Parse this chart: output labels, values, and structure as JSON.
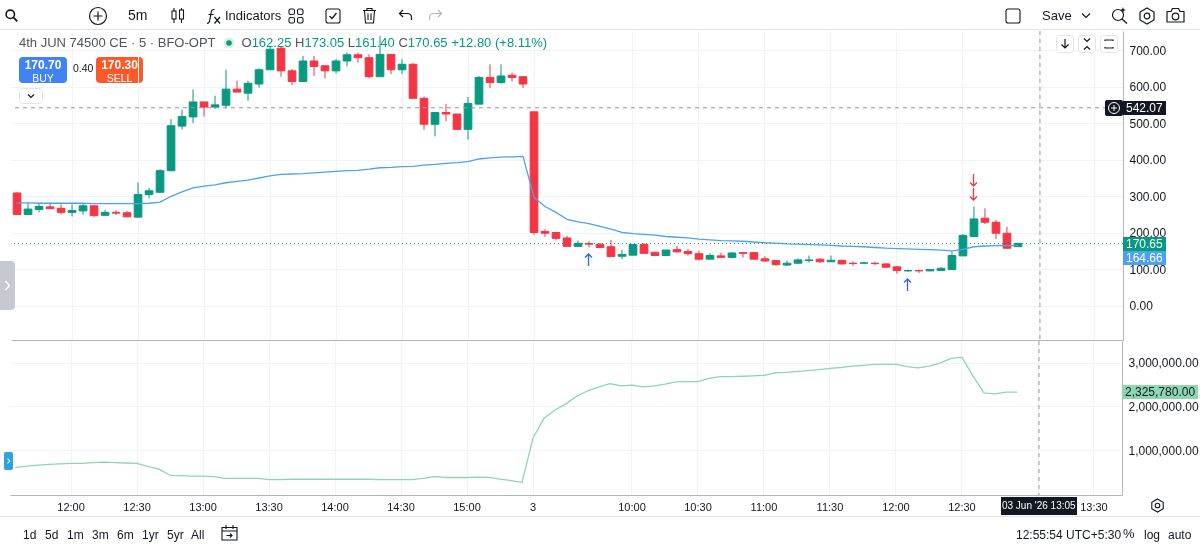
{
  "chart_data": [
    {
      "type": "candlestick",
      "title": "4th JUN 74500 CE · 5 · BFO-OPT",
      "subtitle": "O162.25 H173.05 L161.40 C170.65 +12.80 (+8.11%)",
      "categories": [
        null,
        null,
        null,
        null,
        null,
        "12:00",
        null,
        null,
        null,
        null,
        null,
        "12:30",
        null,
        null,
        null,
        null,
        null,
        "13:00",
        null,
        null,
        null,
        null,
        null,
        "13:30",
        null,
        null,
        null,
        null,
        null,
        "14:00",
        null,
        null,
        null,
        null,
        null,
        "14:30",
        null,
        null,
        null,
        null,
        null,
        "15:00",
        null,
        null,
        null,
        null,
        null,
        "3",
        null,
        null,
        null,
        null,
        null,
        null,
        null,
        null,
        "10:00",
        null,
        null,
        null,
        null,
        null,
        "10:30",
        null,
        null,
        null,
        null,
        null,
        "11:00",
        null,
        null,
        null,
        null,
        null,
        "11:30",
        null,
        null,
        null,
        null,
        null,
        "12:00",
        null,
        null,
        null,
        null,
        null,
        "12:30",
        null,
        null,
        null,
        null,
        null,
        null,
        "03 Jun '26 13:05",
        null,
        null,
        null,
        null,
        "13:30",
        null,
        null
      ],
      "ohlc": [
        [
          309,
          312,
          250,
          250
        ],
        [
          250,
          282,
          250,
          265
        ],
        [
          264,
          280,
          256,
          272
        ],
        [
          271,
          280,
          266,
          266
        ],
        [
          267,
          278,
          250,
          256
        ],
        [
          256,
          278,
          245,
          261
        ],
        [
          260,
          280,
          250,
          274
        ],
        [
          274,
          274,
          243,
          247
        ],
        [
          248,
          263,
          246,
          256
        ],
        [
          256,
          262,
          249,
          254
        ],
        [
          255,
          260,
          242,
          244
        ],
        [
          243,
          338,
          241,
          305
        ],
        [
          305,
          323,
          294,
          315
        ],
        [
          311,
          374,
          309,
          370
        ],
        [
          370,
          511,
          368,
          493
        ],
        [
          492,
          537,
          483,
          518
        ],
        [
          517,
          592,
          500,
          558
        ],
        [
          558,
          558,
          518,
          544
        ],
        [
          544,
          575,
          539,
          550
        ],
        [
          549,
          646,
          540,
          593
        ],
        [
          593,
          616,
          585,
          585
        ],
        [
          582,
          616,
          561,
          609
        ],
        [
          607,
          650,
          597,
          646
        ],
        [
          646,
          709,
          646,
          702
        ],
        [
          705,
          709,
          627,
          643
        ],
        [
          643,
          648,
          604,
          614
        ],
        [
          614,
          684,
          614,
          670
        ],
        [
          670,
          684,
          629,
          655
        ],
        [
          657,
          657,
          622,
          643
        ],
        [
          643,
          675,
          636,
          670
        ],
        [
          670,
          693,
          655,
          687
        ],
        [
          687,
          693,
          666,
          679
        ],
        [
          679,
          688,
          622,
          627
        ],
        [
          627,
          739,
          627,
          688
        ],
        [
          688,
          688,
          634,
          646
        ],
        [
          646,
          675,
          634,
          661
        ],
        [
          661,
          664,
          568,
          568
        ],
        [
          568,
          573,
          482,
          497
        ],
        [
          497,
          529,
          464,
          529
        ],
        [
          529,
          552,
          505,
          525
        ],
        [
          525,
          525,
          483,
          483
        ],
        [
          483,
          572,
          455,
          554
        ],
        [
          552,
          629,
          552,
          625
        ],
        [
          625,
          661,
          596,
          611
        ],
        [
          611,
          661,
          608,
          629
        ],
        [
          631,
          638,
          614,
          625
        ],
        [
          627,
          629,
          596,
          607
        ],
        [
          531,
          531,
          195,
          201
        ],
        [
          204,
          210,
          189,
          199
        ],
        [
          201,
          201,
          179,
          185
        ],
        [
          186,
          192,
          162,
          163
        ],
        [
          163,
          179,
          163,
          171
        ],
        [
          171,
          177,
          160,
          169
        ],
        [
          169,
          172,
          158,
          160
        ],
        [
          162,
          181,
          135,
          135
        ],
        [
          136,
          154,
          128,
          141
        ],
        [
          139,
          169,
          139,
          168
        ],
        [
          168,
          172,
          144,
          144
        ],
        [
          147,
          147,
          136,
          138
        ],
        [
          138,
          153,
          136,
          153
        ],
        [
          154,
          165,
          146,
          148
        ],
        [
          149,
          156,
          138,
          143
        ],
        [
          143,
          151,
          124,
          128
        ],
        [
          128,
          144,
          128,
          138
        ],
        [
          137,
          146,
          133,
          133
        ],
        [
          133,
          147,
          130,
          145
        ],
        [
          146,
          146,
          133,
          144
        ],
        [
          146,
          146,
          128,
          128
        ],
        [
          129,
          136,
          121,
          123
        ],
        [
          124,
          126,
          110,
          113
        ],
        [
          112,
          124,
          110,
          117
        ],
        [
          117,
          130,
          115,
          126
        ],
        [
          124,
          138,
          119,
          126
        ],
        [
          128,
          130,
          118,
          121
        ],
        [
          121,
          138,
          121,
          125
        ],
        [
          125,
          125,
          113,
          115
        ],
        [
          117,
          122,
          110,
          116
        ],
        [
          117,
          121,
          115,
          118
        ],
        [
          117,
          121,
          112,
          116
        ],
        [
          115,
          117,
          105,
          106
        ],
        [
          107,
          109,
          88,
          97
        ],
        [
          96,
          99,
          93,
          97
        ],
        [
          97,
          99,
          90,
          96
        ],
        [
          96,
          100,
          95,
          100
        ],
        [
          97,
          106,
          97,
          103
        ],
        [
          100,
          149,
          100,
          138
        ],
        [
          137,
          197,
          137,
          193
        ],
        [
          190,
          272,
          188,
          238
        ],
        [
          240,
          267,
          224,
          229
        ],
        [
          229,
          236,
          183,
          199
        ],
        [
          199,
          217,
          157.85,
          157.85
        ],
        [
          162.25,
          173.05,
          161.4,
          170.65
        ],
        null,
        null,
        null,
        null,
        null,
        null,
        null,
        null,
        null
      ],
      "colors": [
        "#f23645",
        "#089981",
        "#089981",
        "#f23645",
        "#f23645",
        "#089981",
        "#089981",
        "#f23645",
        "#089981",
        "#f23645",
        "#f23645",
        "#089981",
        "#089981",
        "#089981",
        "#089981",
        "#089981",
        "#089981",
        "#f23645",
        "#089981",
        "#089981",
        "#f23645",
        "#089981",
        "#089981",
        "#089981",
        "#f23645",
        "#f23645",
        "#089981",
        "#f23645",
        "#f23645",
        "#089981",
        "#089981",
        "#f23645",
        "#f23645",
        "#089981",
        "#f23645",
        "#089981",
        "#f23645",
        "#f23645",
        "#089981",
        "#f23645",
        "#f23645",
        "#089981",
        "#089981",
        "#f23645",
        "#089981",
        "#f23645",
        "#f23645",
        "#f23645",
        "#f23645",
        "#f23645",
        "#f23645",
        "#089981",
        "#f23645",
        "#f23645",
        "#f23645",
        "#089981",
        "#089981",
        "#f23645",
        "#f23645",
        "#089981",
        "#f23645",
        "#f23645",
        "#f23645",
        "#089981",
        "#f23645",
        "#089981",
        "#f23645",
        "#f23645",
        "#f23645",
        "#f23645",
        "#089981",
        "#089981",
        "#089981",
        "#f23645",
        "#089981",
        "#f23645",
        "#f23645",
        "#089981",
        "#f23645",
        "#f23645",
        "#f23645",
        "#089981",
        "#f23645",
        "#089981",
        "#089981",
        "#089981",
        "#089981",
        "#089981",
        "#f23645",
        "#f23645",
        "#f23645",
        "#089981",
        null,
        null,
        null,
        null,
        null,
        null,
        null,
        null,
        null
      ],
      "series": [
        {
          "type": "line",
          "color": "#4ba3ef",
          "values": [
            282,
            282,
            281,
            281,
            281,
            281,
            281,
            280,
            280,
            280,
            280,
            280,
            281,
            284,
            300,
            312,
            323,
            328,
            331,
            337,
            341,
            344,
            350,
            356,
            360,
            361,
            362,
            364,
            366,
            368,
            370,
            371,
            374,
            378,
            379,
            381,
            382,
            385,
            387,
            390,
            392,
            395,
            402,
            405,
            407,
            408,
            409,
            297,
            272,
            256,
            237,
            230,
            225,
            218,
            210,
            201,
            198,
            196,
            194,
            190,
            188,
            186,
            183,
            181,
            179,
            178,
            177,
            175,
            173,
            172,
            170,
            169,
            168,
            167,
            166,
            164,
            163,
            162,
            160,
            158,
            157,
            156,
            155,
            154,
            153,
            151,
            155,
            162,
            164,
            165,
            165,
            165,
            null,
            null,
            null,
            null,
            null,
            null,
            null,
            null,
            null
          ]
        }
      ],
      "ylim": [
        -93,
        752
      ],
      "yticks": [
        {
          "value": 0,
          "label": "0.00"
        },
        {
          "value": 100,
          "label": "100.00"
        },
        {
          "value": 200,
          "label": "200.00"
        },
        {
          "value": 300,
          "label": "300.00"
        },
        {
          "value": 400,
          "label": "400.00"
        },
        {
          "value": 500,
          "label": "500.00"
        },
        {
          "value": 600,
          "label": "600.00"
        },
        {
          "value": 700,
          "label": "700.00"
        }
      ],
      "grid": true,
      "tick_labels": "y",
      "ref_lines": [
        {
          "axis": "x",
          "value": "03 Jun '26 13:05",
          "line_style": "dashed"
        },
        {
          "axis": "y",
          "value": 542.07,
          "label": "542.07",
          "line_style": "dashed"
        },
        {
          "axis": "y",
          "value": 170.65,
          "label": "170.65",
          "line_style": "dotted",
          "color": "#089981"
        }
      ],
      "annotations": [
        "5m",
        "Indicators",
        "Save",
        "170.70",
        "BUY",
        "0.40",
        "170.30",
        "SELL",
        "1d",
        "5d",
        "1m",
        "3m",
        "6m",
        "1yr",
        "5yr",
        "All",
        "12:55:54 UTC+5:30",
        "%",
        "log",
        "auto",
        "164.66"
      ]
    },
    {
      "type": "line",
      "categories": [
        null,
        null,
        null,
        null,
        null,
        "12:00",
        null,
        null,
        null,
        null,
        null,
        "12:30",
        null,
        null,
        null,
        null,
        null,
        "13:00",
        null,
        null,
        null,
        null,
        null,
        "13:30",
        null,
        null,
        null,
        null,
        null,
        "14:00",
        null,
        null,
        null,
        null,
        null,
        "14:30",
        null,
        null,
        null,
        null,
        null,
        "15:00",
        null,
        null,
        null,
        null,
        null,
        "3",
        null,
        null,
        null,
        null,
        null,
        null,
        null,
        null,
        "10:00",
        null,
        null,
        null,
        null,
        null,
        "10:30",
        null,
        null,
        null,
        null,
        null,
        "11:00",
        null,
        null,
        null,
        null,
        null,
        "11:30",
        null,
        null,
        null,
        null,
        null,
        "12:00",
        null,
        null,
        null,
        null,
        null,
        "12:30",
        null,
        null,
        null,
        null,
        null,
        null,
        "03 Jun '26 13:05",
        null,
        null,
        null,
        null,
        "13:30",
        null,
        null
      ],
      "series": [
        {
          "color": "#8cd6b4",
          "values": [
            610000,
            640000,
            660000,
            680000,
            690000,
            700000,
            700000,
            720000,
            730000,
            720000,
            710000,
            700000,
            630000,
            570000,
            430000,
            420000,
            410000,
            410000,
            400000,
            360000,
            360000,
            360000,
            360000,
            330000,
            330000,
            340000,
            340000,
            340000,
            340000,
            340000,
            340000,
            340000,
            340000,
            330000,
            330000,
            330000,
            330000,
            360000,
            400000,
            380000,
            380000,
            380000,
            390000,
            380000,
            340000,
            310000,
            270000,
            1280000,
            1730000,
            1920000,
            2060000,
            2240000,
            2360000,
            2450000,
            2520000,
            2470000,
            2490000,
            2450000,
            2470000,
            2510000,
            2560000,
            2570000,
            2570000,
            2640000,
            2680000,
            2680000,
            2690000,
            2700000,
            2710000,
            2770000,
            2780000,
            2800000,
            2820000,
            2840000,
            2870000,
            2890000,
            2920000,
            2940000,
            2960000,
            2960000,
            2960000,
            2910000,
            2880000,
            2920000,
            2990000,
            3100000,
            3120000,
            2700000,
            2310000,
            2290000,
            2330000,
            2330000,
            null,
            null,
            null,
            null,
            null,
            null,
            null,
            null,
            null
          ]
        }
      ],
      "ylim": [
        -20000,
        3495000
      ],
      "yticks": [
        {
          "value": 1000000,
          "label": "1,000,000.00"
        },
        {
          "value": 2000000,
          "label": "2,000,000.00"
        },
        {
          "value": 3000000,
          "label": "3,000,000.00"
        }
      ],
      "grid": true,
      "ref_lines": [
        {
          "axis": "x",
          "value": "03 Jun '26 13:05",
          "line_style": "dashed"
        }
      ],
      "annotations": [
        "2,325,780.00"
      ]
    }
  ]
}
